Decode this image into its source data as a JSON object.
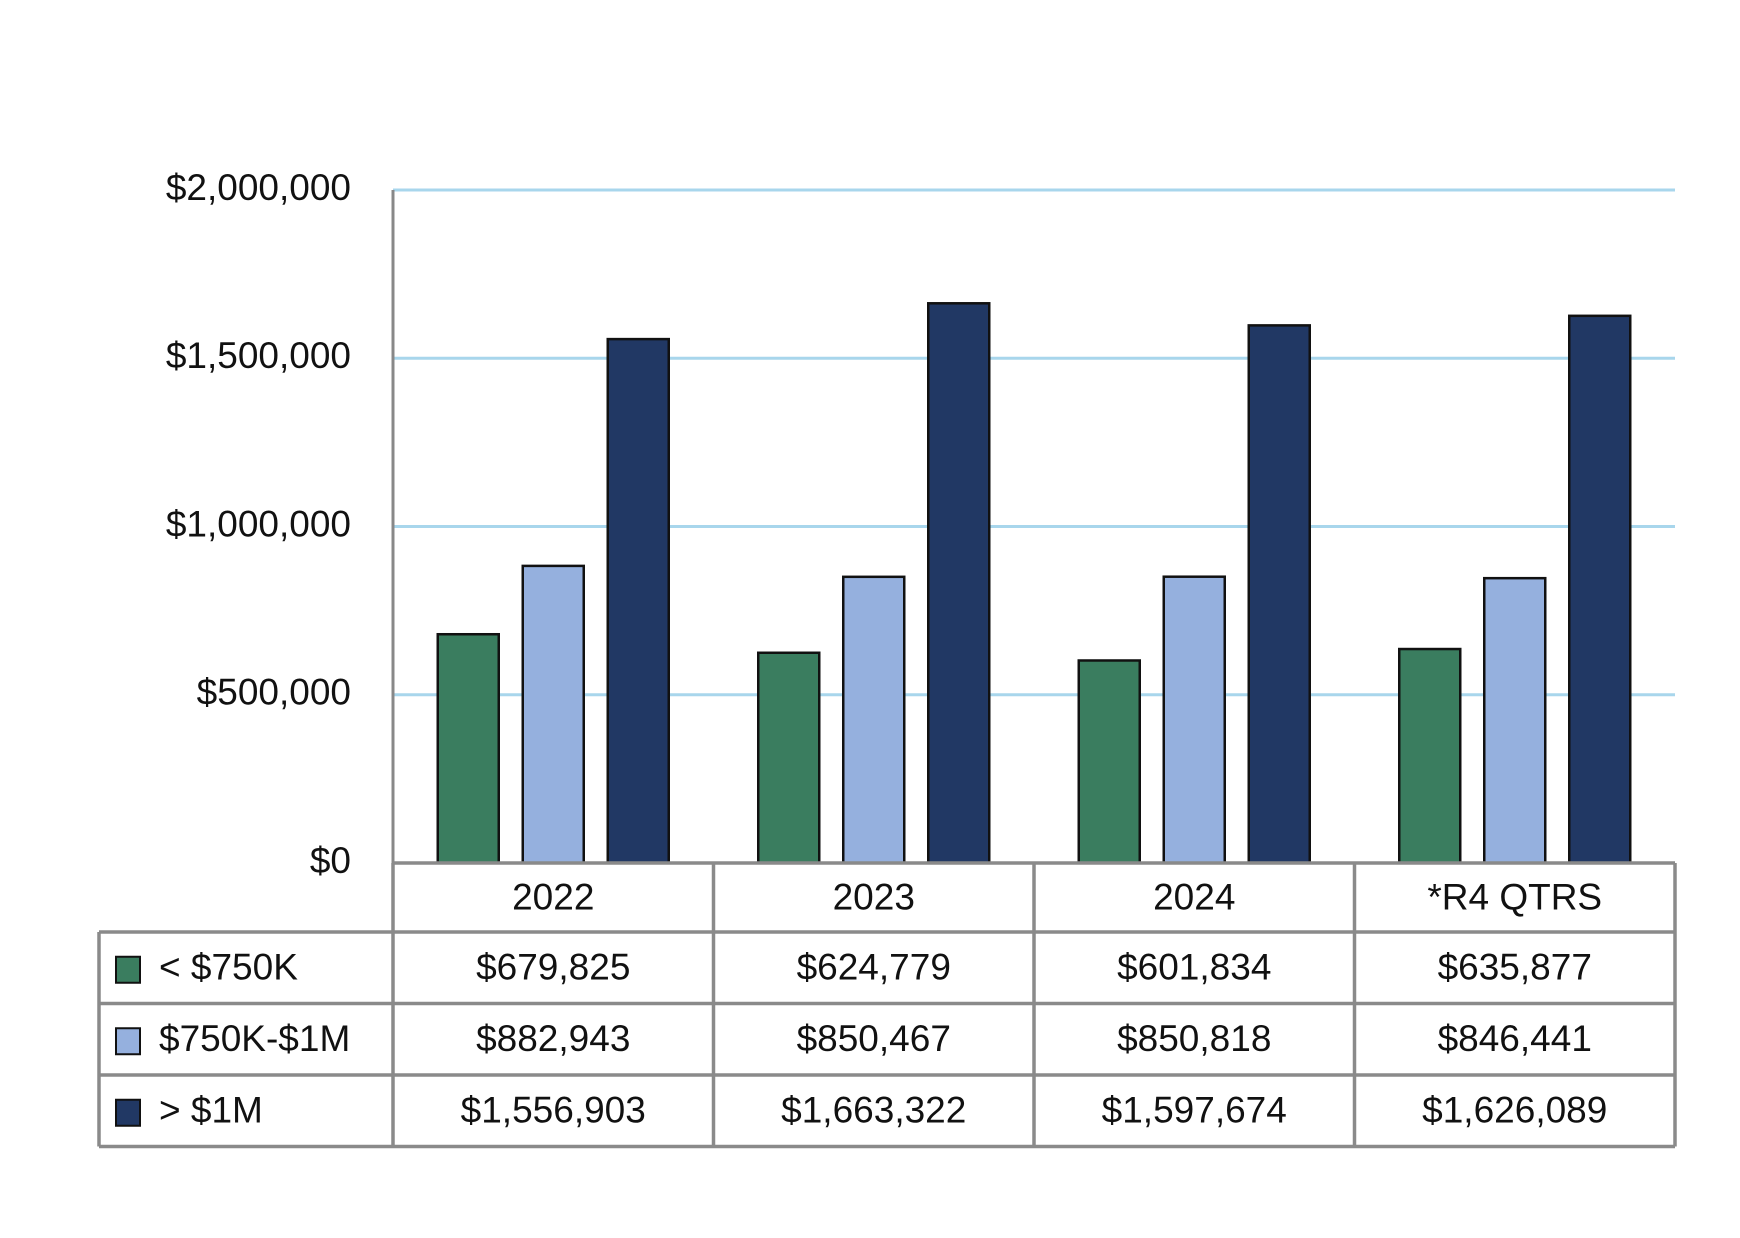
{
  "chart_data": {
    "type": "bar",
    "categories": [
      "2022",
      "2023",
      "2024",
      "*R4 QTRS"
    ],
    "series": [
      {
        "name": "< $750K",
        "color": "#3a7d5f",
        "values": [
          679825,
          624779,
          601834,
          635877
        ],
        "value_labels": [
          "$679,825",
          "$624,779",
          "$601,834",
          "$635,877"
        ]
      },
      {
        "name": "$750K-$1M",
        "color": "#95b0de",
        "values": [
          882943,
          850467,
          850818,
          846441
        ],
        "value_labels": [
          "$882,943",
          "$850,467",
          "$850,818",
          "$846,441"
        ]
      },
      {
        "name": "> $1M",
        "color": "#213864",
        "values": [
          1556903,
          1663322,
          1597674,
          1626089
        ],
        "value_labels": [
          "$1,556,903",
          "$1,663,322",
          "$1,597,674",
          "$1,626,089"
        ]
      }
    ],
    "ylim": [
      0,
      2000000
    ],
    "yticks": [
      {
        "value": 0,
        "label": "$0"
      },
      {
        "value": 500000,
        "label": "$500,000"
      },
      {
        "value": 1000000,
        "label": "$1,000,000"
      },
      {
        "value": 1500000,
        "label": "$1,500,000"
      },
      {
        "value": 2000000,
        "label": "$2,000,000"
      }
    ],
    "grid": true,
    "grid_color": "#a8d6ec"
  }
}
